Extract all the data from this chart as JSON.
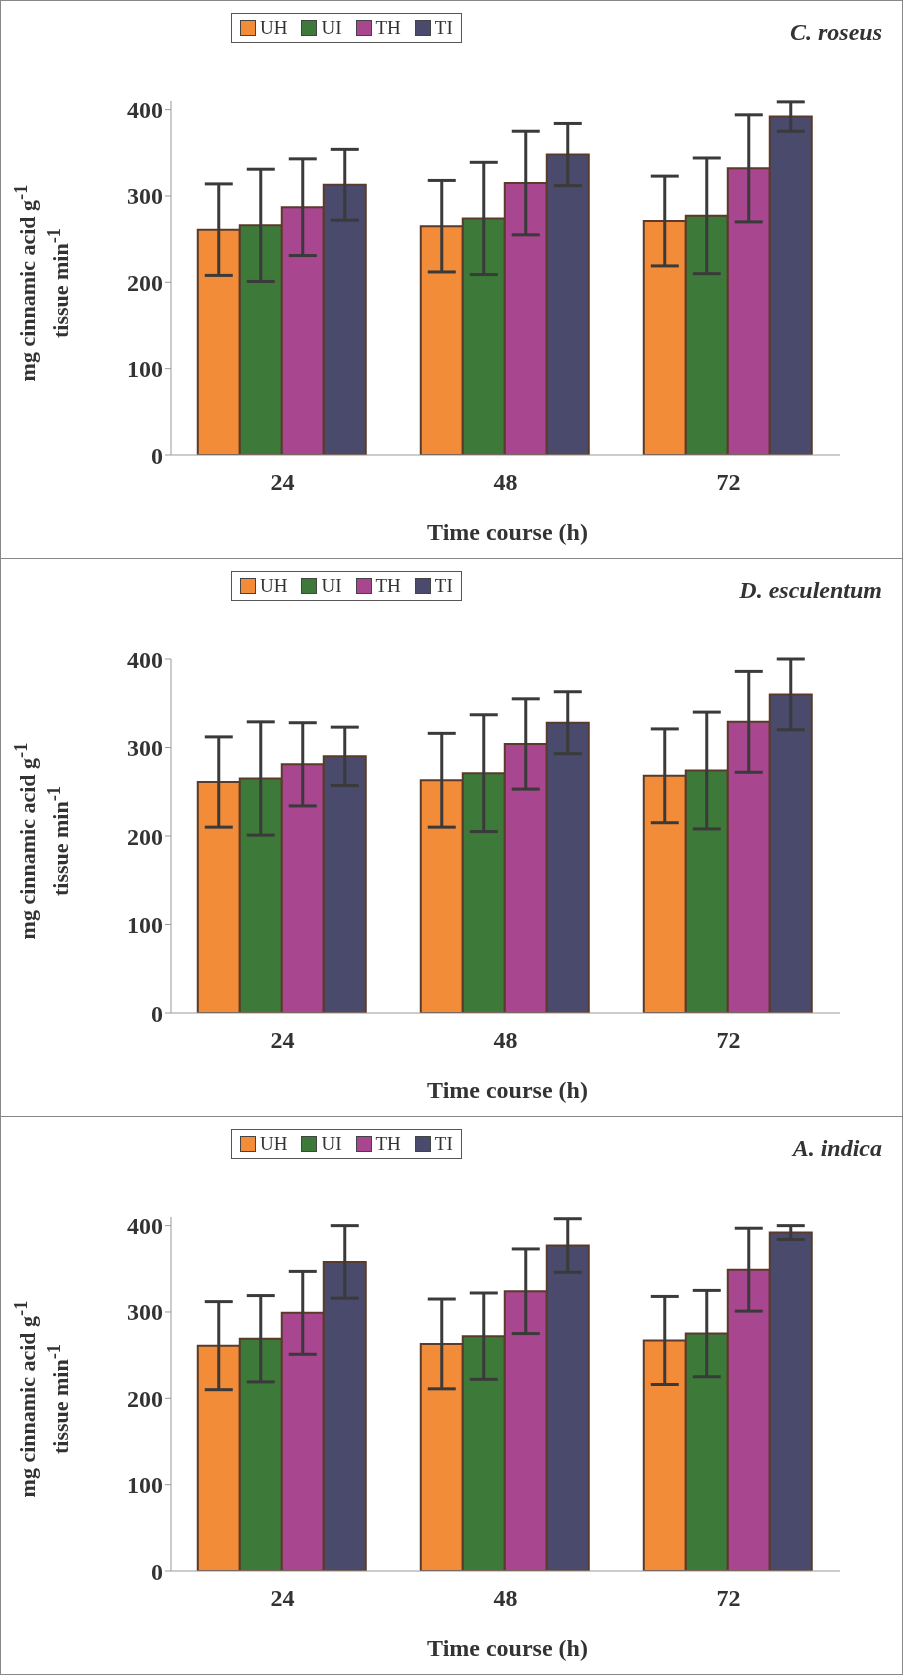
{
  "chart_data": [
    {
      "type": "bar",
      "annotations": [
        "C. roseus"
      ],
      "xlabel": "Time course (h)",
      "ylabel": "mg cinnamic acid g$^{-1}$\ntissue min$^{-1}$",
      "categories": [
        "24",
        "48",
        "72"
      ],
      "ylim": [
        0,
        410
      ],
      "yticks": [
        0,
        100,
        200,
        300,
        400
      ],
      "legend": "top",
      "grid": false,
      "series": [
        {
          "name": "UH",
          "color": "#f28c38",
          "values": [
            261,
            265,
            271
          ],
          "errors": [
            53,
            53,
            52
          ]
        },
        {
          "name": "UI",
          "color": "#3d7a3a",
          "values": [
            266,
            274,
            277
          ],
          "errors": [
            65,
            65,
            67
          ]
        },
        {
          "name": "TH",
          "color": "#a8468f",
          "values": [
            287,
            315,
            332
          ],
          "errors": [
            56,
            60,
            62
          ]
        },
        {
          "name": "TI",
          "color": "#4a4a6c",
          "values": [
            313,
            348,
            392
          ],
          "errors": [
            41,
            36,
            17
          ]
        }
      ]
    },
    {
      "type": "bar",
      "annotations": [
        "D. esculentum"
      ],
      "xlabel": "Time course (h)",
      "ylabel": "mg cinnamic acid g$^{-1}$\ntissue min$^{-1}$",
      "categories": [
        "24",
        "48",
        "72"
      ],
      "ylim": [
        0,
        400
      ],
      "yticks": [
        0,
        100,
        200,
        300,
        400
      ],
      "legend": "top",
      "grid": false,
      "series": [
        {
          "name": "UH",
          "color": "#f28c38",
          "values": [
            261,
            263,
            268
          ],
          "errors": [
            51,
            53,
            53
          ]
        },
        {
          "name": "UI",
          "color": "#3d7a3a",
          "values": [
            265,
            271,
            274
          ],
          "errors": [
            64,
            66,
            66
          ]
        },
        {
          "name": "TH",
          "color": "#a8468f",
          "values": [
            281,
            304,
            329
          ],
          "errors": [
            47,
            51,
            57
          ]
        },
        {
          "name": "TI",
          "color": "#4a4a6c",
          "values": [
            290,
            328,
            360
          ],
          "errors": [
            33,
            35,
            40
          ]
        }
      ]
    },
    {
      "type": "bar",
      "annotations": [
        "A. indica"
      ],
      "xlabel": "Time course (h)",
      "ylabel": "mg cinnamic acid g$^{-1}$\ntissue min$^{-1}$",
      "categories": [
        "24",
        "48",
        "72"
      ],
      "ylim": [
        0,
        410
      ],
      "yticks": [
        0,
        100,
        200,
        300,
        400
      ],
      "legend": "top",
      "grid": false,
      "series": [
        {
          "name": "UH",
          "color": "#f28c38",
          "values": [
            261,
            263,
            267
          ],
          "errors": [
            51,
            52,
            51
          ]
        },
        {
          "name": "UI",
          "color": "#3d7a3a",
          "values": [
            269,
            272,
            275
          ],
          "errors": [
            50,
            50,
            50
          ]
        },
        {
          "name": "TH",
          "color": "#a8468f",
          "values": [
            299,
            324,
            349
          ],
          "errors": [
            48,
            49,
            48
          ]
        },
        {
          "name": "TI",
          "color": "#4a4a6c",
          "values": [
            358,
            377,
            392
          ],
          "errors": [
            42,
            31,
            8
          ]
        }
      ]
    }
  ]
}
